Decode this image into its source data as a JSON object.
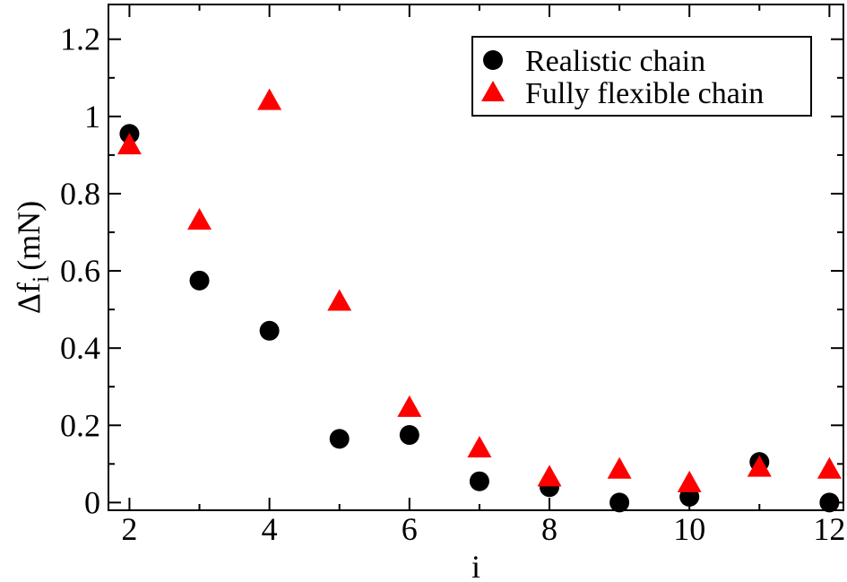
{
  "chart_data": {
    "type": "scatter",
    "xlabel": "i",
    "ylabel_main": "Δf",
    "ylabel_sub": "i",
    "ylabel_unit": "(mN)",
    "xlim": [
      1.7,
      12.2
    ],
    "ylim": [
      -0.02,
      1.29
    ],
    "xticks": [
      2,
      4,
      6,
      8,
      10,
      12
    ],
    "xtick_labels": [
      "2",
      "4",
      "6",
      "8",
      "10",
      "12"
    ],
    "yticks": [
      0,
      0.2,
      0.4,
      0.6,
      0.8,
      1.0,
      1.2
    ],
    "ytick_labels": [
      "0",
      "0.2",
      "0.4",
      "0.6",
      "0.8",
      "1",
      "1.2"
    ],
    "grid": false,
    "legend_position": "top-right",
    "series": [
      {
        "name": "Realistic chain",
        "marker": "circle",
        "color": "#000000",
        "x": [
          2,
          3,
          4,
          5,
          6,
          7,
          8,
          9,
          10,
          11,
          12
        ],
        "y": [
          0.955,
          0.575,
          0.445,
          0.165,
          0.175,
          0.055,
          0.04,
          0.0,
          0.015,
          0.105,
          0.0
        ]
      },
      {
        "name": "Fully flexible chain",
        "marker": "triangle",
        "color": "#ff0000",
        "x": [
          2,
          3,
          4,
          5,
          6,
          7,
          8,
          9,
          10,
          11,
          12
        ],
        "y": [
          0.925,
          0.73,
          1.04,
          0.52,
          0.245,
          0.14,
          0.065,
          0.085,
          0.05,
          0.09,
          0.085
        ]
      }
    ]
  }
}
